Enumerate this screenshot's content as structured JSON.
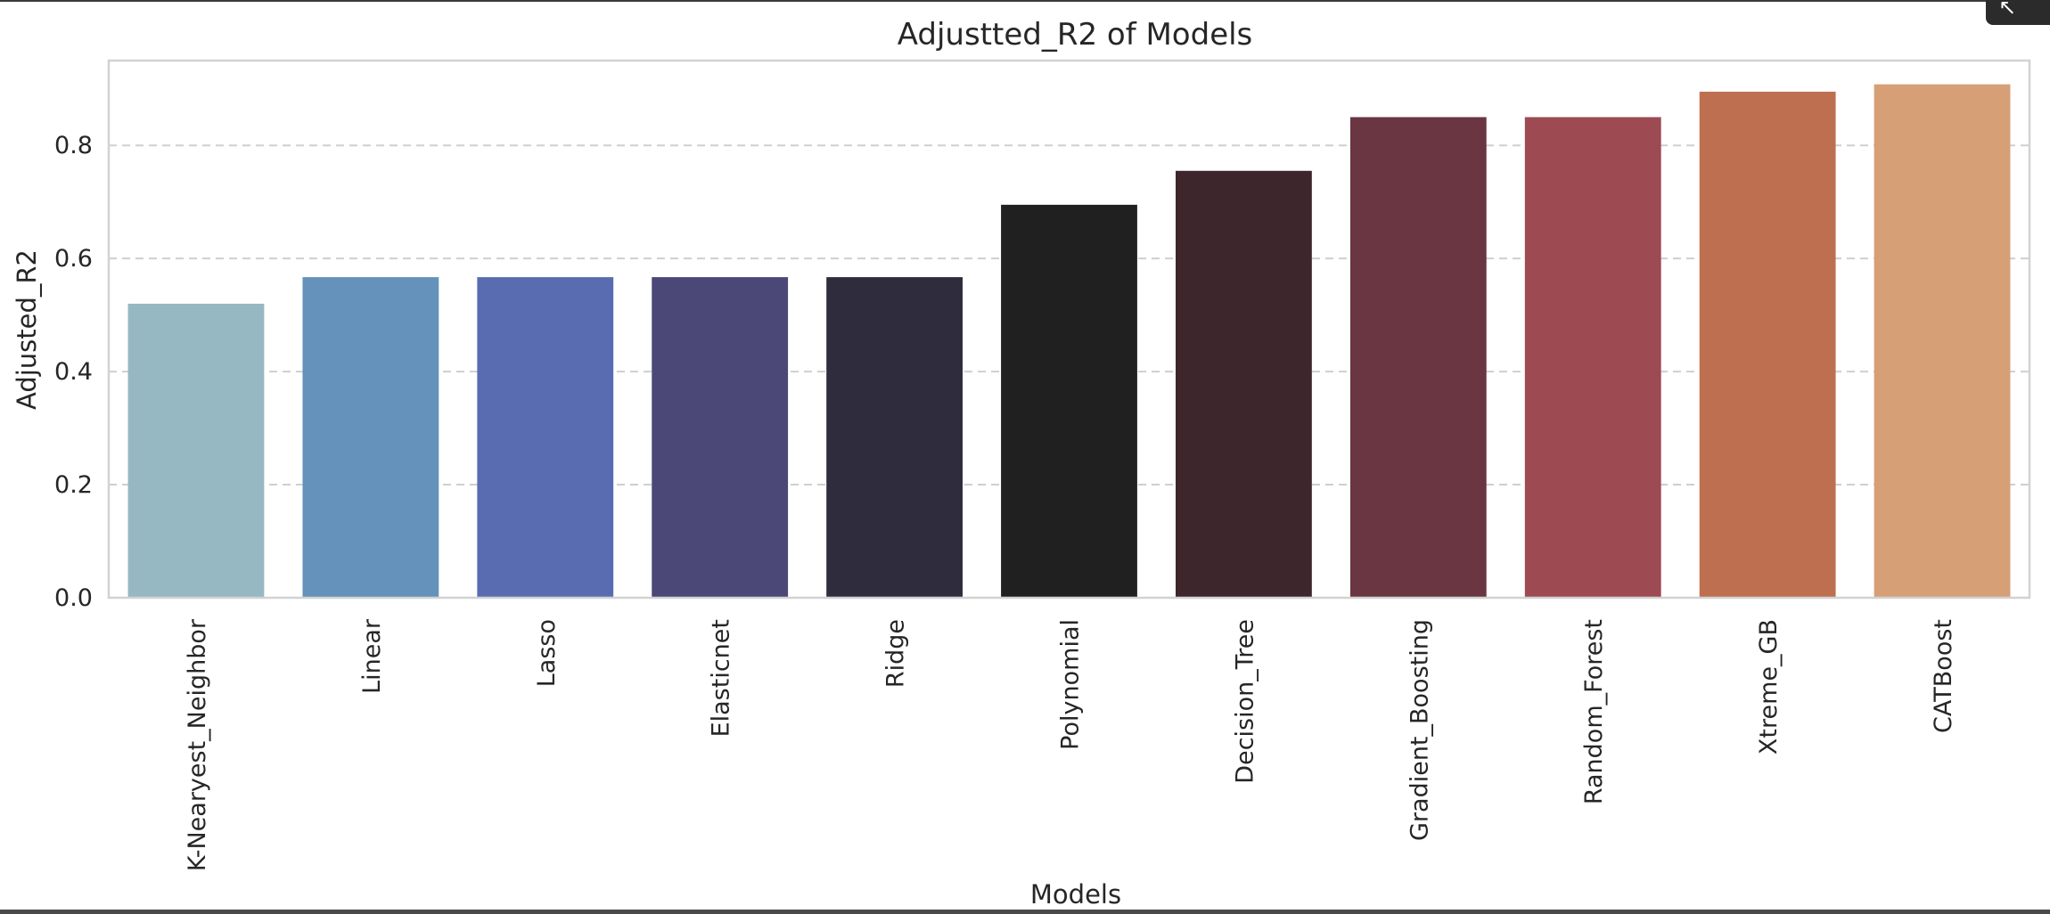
{
  "chart_data": {
    "type": "bar",
    "title": "Adjustted_R2 of Models",
    "xlabel": "Models",
    "ylabel": "Adjusted_R2",
    "ylim": [
      0,
      0.95
    ],
    "yticks": [
      "0.0",
      "0.2",
      "0.4",
      "0.6",
      "0.8"
    ],
    "grid": "horizontal dashed",
    "categories": [
      "K-Nearyest_Neighbor",
      "Linear",
      "Lasso",
      "Elasticnet",
      "Ridge",
      "Polynomial",
      "Decision_Tree",
      "Gradient_Boosting",
      "Random_Forest",
      "Xtreme_GB",
      "CATBoost"
    ],
    "values": [
      0.52,
      0.567,
      0.567,
      0.567,
      0.567,
      0.695,
      0.755,
      0.85,
      0.85,
      0.895,
      0.908
    ],
    "colors": [
      "#95b8c3",
      "#6492ba",
      "#596cb1",
      "#4b4877",
      "#2f2d3d",
      "#202020",
      "#3d272c",
      "#693641",
      "#9d4a52",
      "#be6f50",
      "#d69f76"
    ]
  },
  "corner_button": {
    "icon": "expand-icon",
    "label": "↖"
  }
}
